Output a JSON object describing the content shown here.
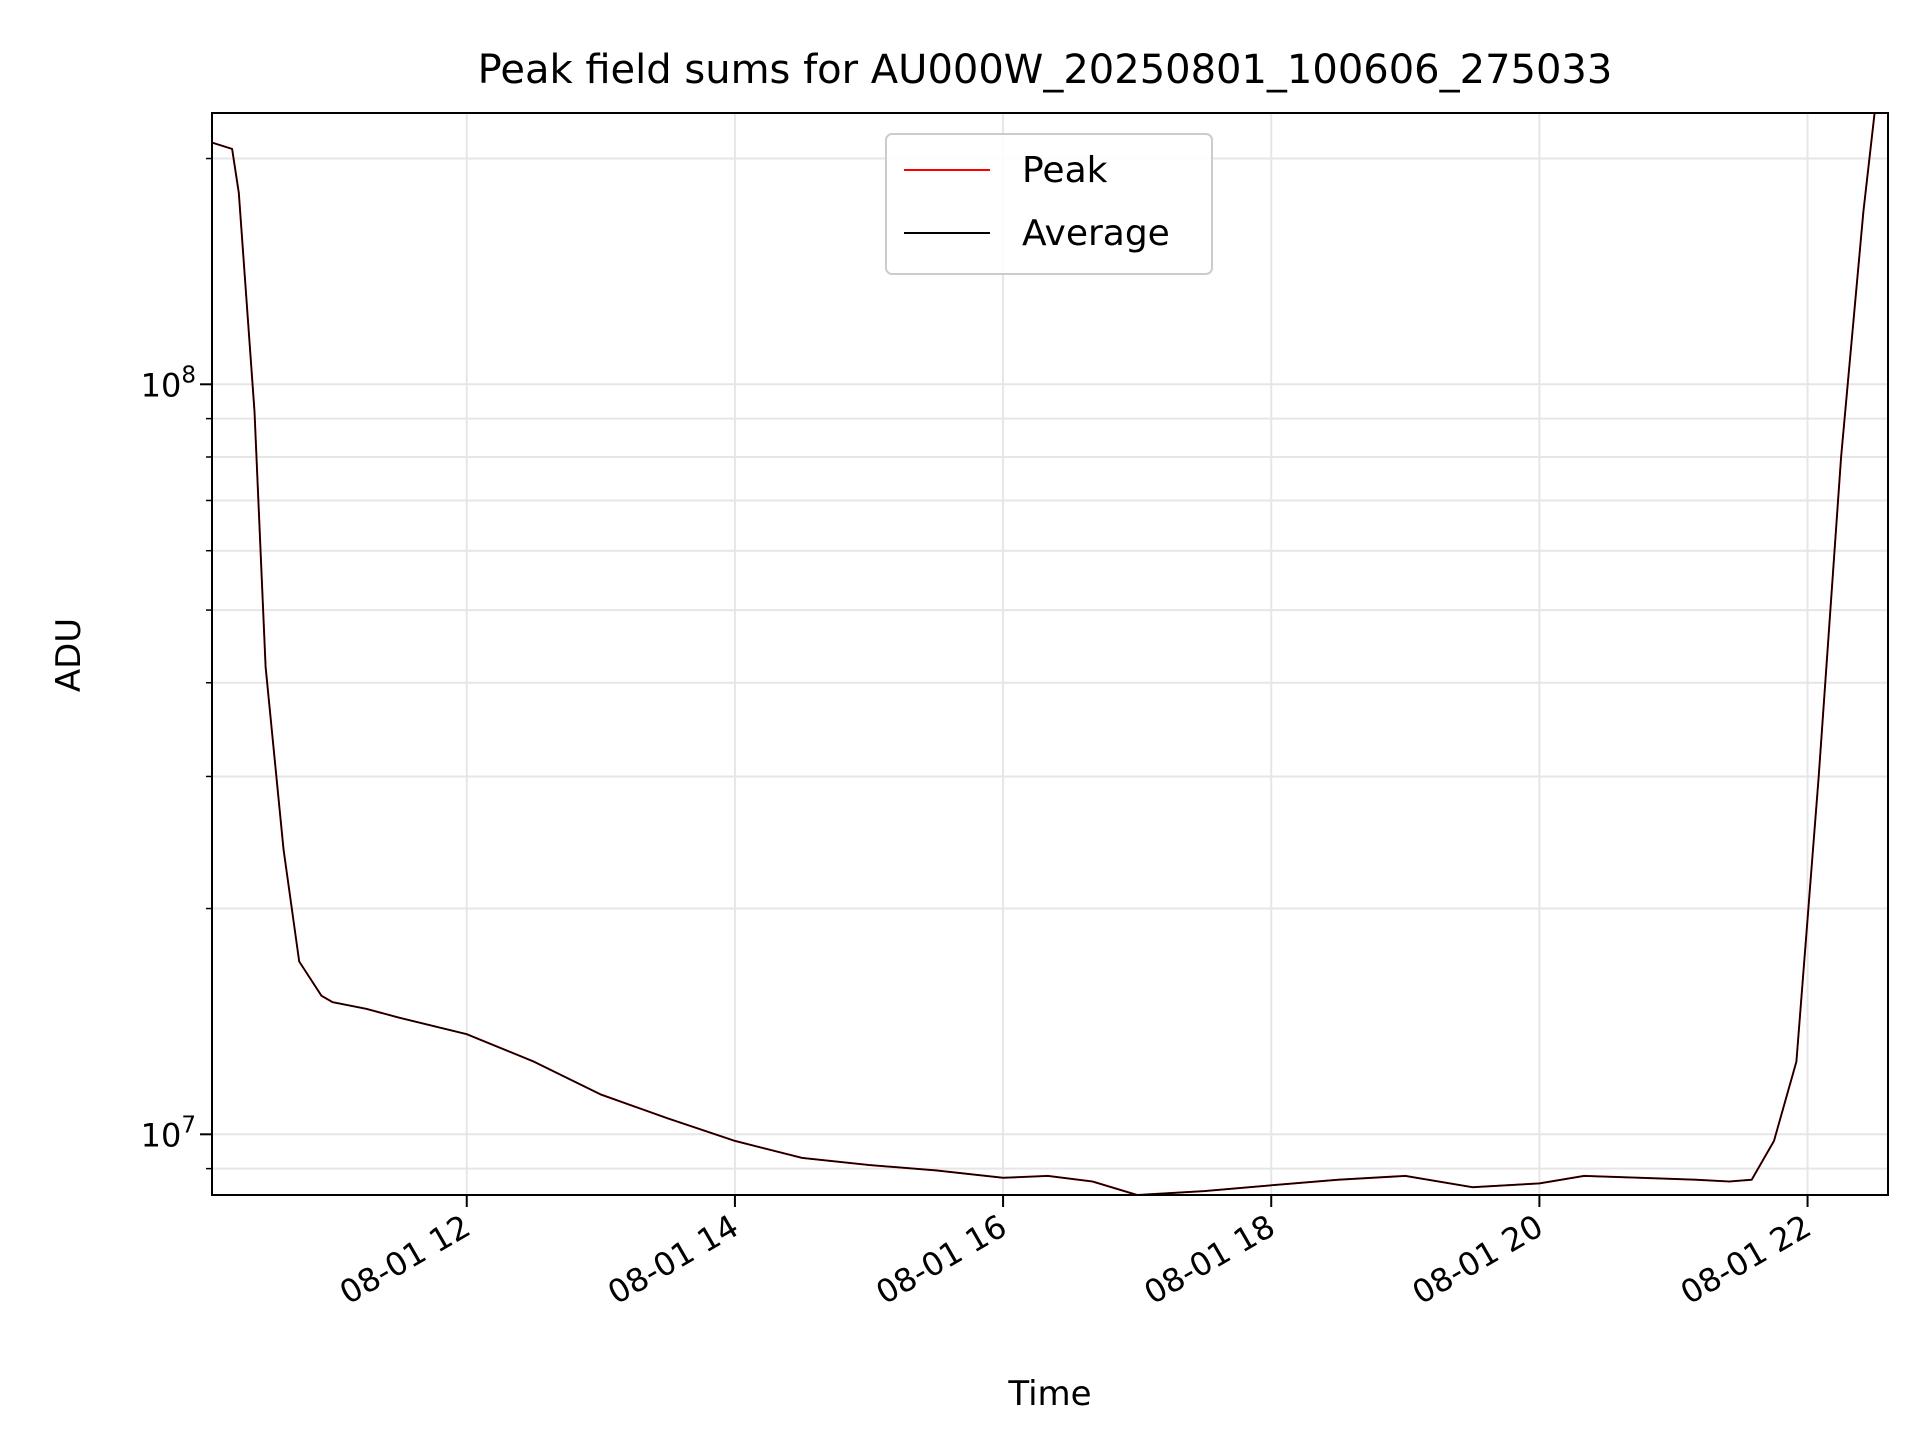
{
  "chart_data": {
    "type": "line",
    "title": "Peak field sums for AU000W_20250801_100606_275033",
    "xlabel": "Time",
    "ylabel": "ADU",
    "y_scale": "log",
    "xlim": [
      "2025-08-01 10:06",
      "2025-08-01 22:36"
    ],
    "ylim": [
      8300000,
      230000000
    ],
    "grid": true,
    "legend_position": "top-center",
    "x_ticks": [
      {
        "label": "08-01 12",
        "time": "2025-08-01 12:00"
      },
      {
        "label": "08-01 14",
        "time": "2025-08-01 14:00"
      },
      {
        "label": "08-01 16",
        "time": "2025-08-01 16:00"
      },
      {
        "label": "08-01 18",
        "time": "2025-08-01 18:00"
      },
      {
        "label": "08-01 20",
        "time": "2025-08-01 20:00"
      },
      {
        "label": "08-01 22",
        "time": "2025-08-01 22:00"
      }
    ],
    "y_major_ticks": [
      {
        "label": "10",
        "exponent": "7",
        "value": 10000000
      },
      {
        "label": "10",
        "exponent": "8",
        "value": 100000000
      }
    ],
    "series": [
      {
        "name": "Peak",
        "color": "#ff0000",
        "x": [
          "2025-08-01 10:06",
          "2025-08-01 10:15",
          "2025-08-01 10:18",
          "2025-08-01 10:25",
          "2025-08-01 10:30",
          "2025-08-01 10:38",
          "2025-08-01 10:45",
          "2025-08-01 10:55",
          "2025-08-01 11:00",
          "2025-08-01 11:15",
          "2025-08-01 11:30",
          "2025-08-01 12:00",
          "2025-08-01 12:30",
          "2025-08-01 13:00",
          "2025-08-01 13:30",
          "2025-08-01 14:00",
          "2025-08-01 14:30",
          "2025-08-01 15:00",
          "2025-08-01 15:30",
          "2025-08-01 16:00",
          "2025-08-01 16:20",
          "2025-08-01 16:40",
          "2025-08-01 17:00",
          "2025-08-01 17:30",
          "2025-08-01 18:00",
          "2025-08-01 18:30",
          "2025-08-01 19:00",
          "2025-08-01 19:30",
          "2025-08-01 20:00",
          "2025-08-01 20:20",
          "2025-08-01 20:45",
          "2025-08-01 21:10",
          "2025-08-01 21:25",
          "2025-08-01 21:35",
          "2025-08-01 21:45",
          "2025-08-01 21:55",
          "2025-08-01 22:05",
          "2025-08-01 22:15",
          "2025-08-01 22:25",
          "2025-08-01 22:30"
        ],
        "values": [
          210000000,
          206000000,
          180000000,
          92000000,
          42000000,
          24000000,
          17000000,
          15300000,
          15000000,
          14700000,
          14300000,
          13600000,
          12500000,
          11300000,
          10500000,
          9800000,
          9300000,
          9100000,
          8950000,
          8750000,
          8800000,
          8650000,
          8300000,
          8400000,
          8550000,
          8700000,
          8800000,
          8500000,
          8600000,
          8800000,
          8750000,
          8700000,
          8650000,
          8700000,
          9800000,
          12500000,
          30000000,
          80000000,
          170000000,
          230000000
        ]
      },
      {
        "name": "Average",
        "color": "#000000",
        "x": [
          "2025-08-01 10:06",
          "2025-08-01 10:15",
          "2025-08-01 10:18",
          "2025-08-01 10:25",
          "2025-08-01 10:30",
          "2025-08-01 10:38",
          "2025-08-01 10:45",
          "2025-08-01 10:55",
          "2025-08-01 11:00",
          "2025-08-01 11:15",
          "2025-08-01 11:30",
          "2025-08-01 12:00",
          "2025-08-01 12:30",
          "2025-08-01 13:00",
          "2025-08-01 13:30",
          "2025-08-01 14:00",
          "2025-08-01 14:30",
          "2025-08-01 15:00",
          "2025-08-01 15:30",
          "2025-08-01 16:00",
          "2025-08-01 16:20",
          "2025-08-01 16:40",
          "2025-08-01 17:00",
          "2025-08-01 17:30",
          "2025-08-01 18:00",
          "2025-08-01 18:30",
          "2025-08-01 19:00",
          "2025-08-01 19:30",
          "2025-08-01 20:00",
          "2025-08-01 20:20",
          "2025-08-01 20:45",
          "2025-08-01 21:10",
          "2025-08-01 21:25",
          "2025-08-01 21:35",
          "2025-08-01 21:45",
          "2025-08-01 21:55",
          "2025-08-01 22:05",
          "2025-08-01 22:15",
          "2025-08-01 22:25",
          "2025-08-01 22:30"
        ],
        "values": [
          210000000,
          206000000,
          180000000,
          92000000,
          42000000,
          24000000,
          17000000,
          15300000,
          15000000,
          14700000,
          14300000,
          13600000,
          12500000,
          11300000,
          10500000,
          9800000,
          9300000,
          9100000,
          8950000,
          8750000,
          8800000,
          8650000,
          8300000,
          8400000,
          8550000,
          8700000,
          8800000,
          8500000,
          8600000,
          8800000,
          8750000,
          8700000,
          8650000,
          8700000,
          9800000,
          12500000,
          30000000,
          80000000,
          170000000,
          230000000
        ]
      }
    ]
  }
}
